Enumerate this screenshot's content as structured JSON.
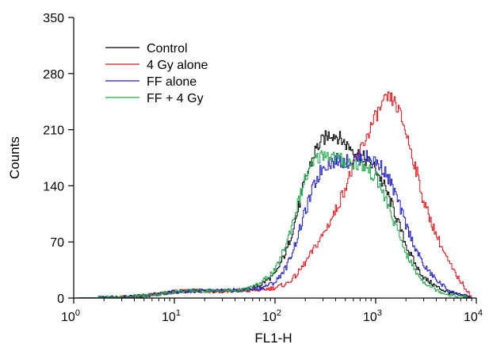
{
  "chart_data": {
    "type": "line",
    "xlabel": "FL1-H",
    "ylabel": "Counts",
    "xscale": "log",
    "xlim": [
      1,
      10000
    ],
    "ylim": [
      0,
      350
    ],
    "x_ticks": [
      {
        "value": 1,
        "base": "10",
        "exp": "0"
      },
      {
        "value": 10,
        "base": "10",
        "exp": "1"
      },
      {
        "value": 100,
        "base": "10",
        "exp": "2"
      },
      {
        "value": 1000,
        "base": "10",
        "exp": "3"
      },
      {
        "value": 10000,
        "base": "10",
        "exp": "4"
      }
    ],
    "y_ticks": [
      0,
      70,
      140,
      210,
      280,
      350
    ],
    "grid": false,
    "legend_position": "top-left",
    "series": [
      {
        "name": "Control",
        "color": "#000000",
        "x": [
          1,
          3,
          5,
          8,
          10,
          15,
          20,
          30,
          50,
          70,
          100,
          130,
          160,
          200,
          250,
          300,
          350,
          400,
          450,
          500,
          600,
          700,
          800,
          900,
          1000,
          1200,
          1500,
          2000,
          2500,
          3000,
          4000,
          5000,
          6000,
          8000,
          9000
        ],
        "y": [
          0,
          1,
          3,
          6,
          8,
          9,
          9,
          9,
          10,
          16,
          30,
          60,
          100,
          150,
          185,
          198,
          205,
          203,
          198,
          192,
          185,
          178,
          172,
          166,
          160,
          140,
          110,
          65,
          40,
          25,
          14,
          8,
          5,
          2,
          0
        ]
      },
      {
        "name": "4 Gy alone",
        "color": "#e8141c",
        "x": [
          1,
          3,
          5,
          8,
          10,
          15,
          20,
          30,
          50,
          70,
          100,
          130,
          160,
          200,
          300,
          400,
          500,
          600,
          700,
          800,
          900,
          1000,
          1200,
          1300,
          1500,
          1700,
          2000,
          2500,
          3000,
          4000,
          5000,
          6000,
          7000,
          8000,
          9000
        ],
        "y": [
          0,
          1,
          3,
          6,
          8,
          9,
          9,
          9,
          9,
          10,
          13,
          18,
          28,
          45,
          80,
          110,
          140,
          165,
          185,
          200,
          215,
          228,
          244,
          250,
          246,
          232,
          205,
          160,
          118,
          78,
          50,
          32,
          20,
          10,
          0
        ]
      },
      {
        "name": "FF alone",
        "color": "#1a1ac8",
        "x": [
          1,
          3,
          5,
          8,
          10,
          15,
          20,
          30,
          50,
          70,
          100,
          130,
          160,
          200,
          250,
          300,
          400,
          500,
          600,
          700,
          800,
          1000,
          1200,
          1500,
          2000,
          2500,
          3000,
          4000,
          5000,
          6000,
          8000,
          9000
        ],
        "y": [
          0,
          1,
          3,
          6,
          8,
          9,
          9,
          9,
          10,
          12,
          20,
          40,
          70,
          110,
          145,
          165,
          172,
          170,
          172,
          175,
          176,
          170,
          160,
          135,
          90,
          60,
          40,
          22,
          12,
          6,
          2,
          0
        ]
      },
      {
        "name": "FF + 4 Gy",
        "color": "#1fa84a",
        "x": [
          1,
          3,
          5,
          8,
          10,
          15,
          20,
          30,
          50,
          70,
          100,
          130,
          160,
          200,
          250,
          300,
          350,
          400,
          500,
          600,
          700,
          800,
          1000,
          1200,
          1500,
          2000,
          2500,
          3000,
          4000,
          5000,
          6000,
          8000,
          9000
        ],
        "y": [
          0,
          1,
          3,
          6,
          8,
          9,
          9,
          9,
          10,
          18,
          35,
          70,
          110,
          150,
          172,
          180,
          178,
          175,
          170,
          168,
          166,
          162,
          150,
          128,
          95,
          55,
          32,
          20,
          10,
          5,
          3,
          1,
          0
        ]
      }
    ]
  }
}
